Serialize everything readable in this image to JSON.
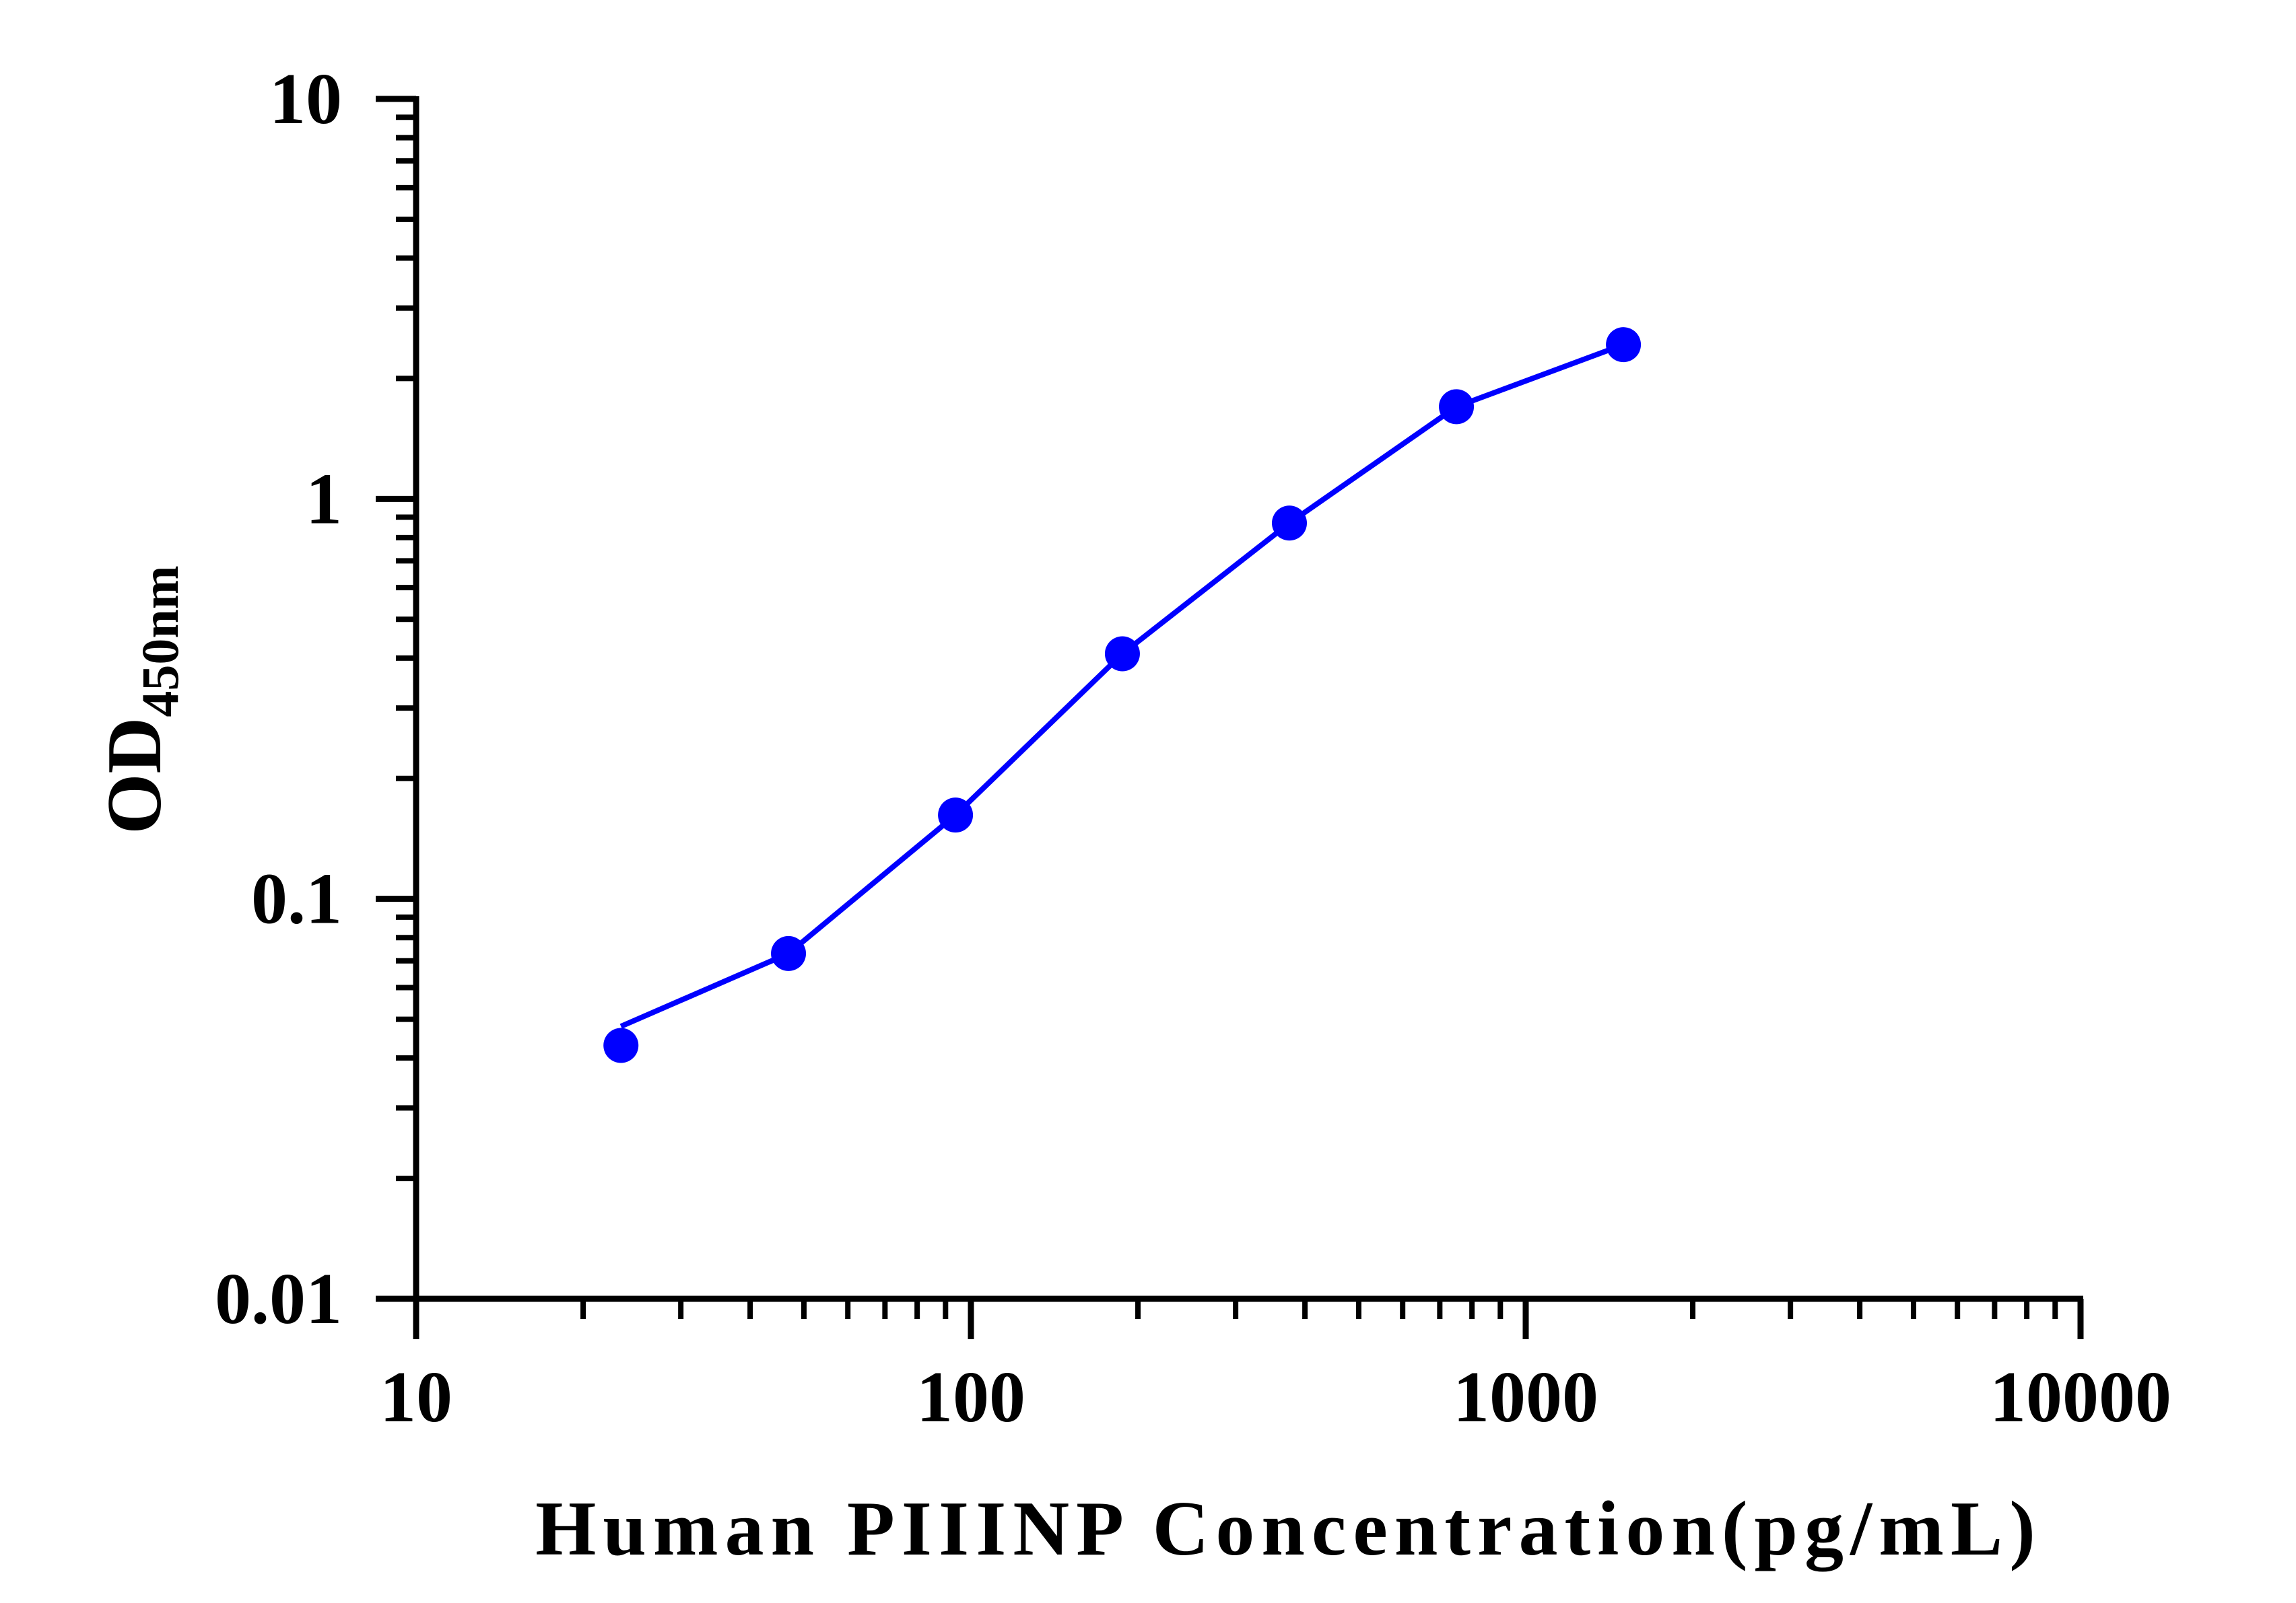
{
  "chart_data": {
    "type": "line",
    "title": "",
    "xlabel": "Human PIIINP Concentration(pg/mL)",
    "ylabel_main": "OD",
    "ylabel_sub": "450nm",
    "x_scale": "log",
    "y_scale": "log",
    "xlim": [
      10,
      10000
    ],
    "ylim": [
      0.01,
      10
    ],
    "x_ticks": [
      "10",
      "100",
      "1000",
      "10000"
    ],
    "y_ticks": [
      "0.01",
      "0.1",
      "1",
      "10"
    ],
    "grid": false,
    "legend": "none",
    "series": [
      {
        "color": "#0000ff",
        "points": [
          {
            "x": 23.4,
            "y": 0.043
          },
          {
            "x": 46.9,
            "y": 0.073
          },
          {
            "x": 93.8,
            "y": 0.162
          },
          {
            "x": 187.5,
            "y": 0.41
          },
          {
            "x": 375,
            "y": 0.87
          },
          {
            "x": 750,
            "y": 1.7
          },
          {
            "x": 1500,
            "y": 2.43
          }
        ]
      }
    ]
  }
}
